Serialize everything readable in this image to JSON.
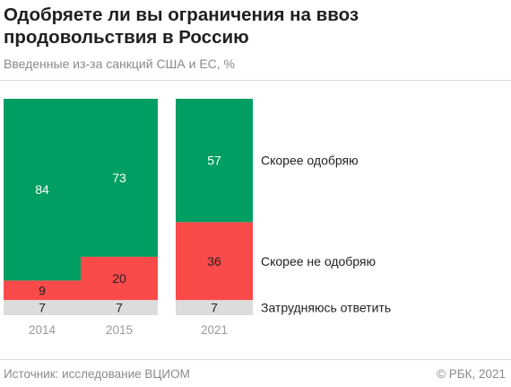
{
  "title": "Одобряете ли вы ограничения на ввоз продовольствия в Россию",
  "subtitle": "Введенные из-за санкций США и ЕС, %",
  "source": "Источник: исследование ВЦИОМ",
  "copyright": "© РБК, 2021",
  "colors": {
    "approve": "#009e63",
    "disapprove": "#fb4a4a",
    "unsure": "#dcdcdc"
  },
  "chart_data": {
    "type": "bar",
    "stacked": true,
    "categories": [
      "2014",
      "2015",
      "2021"
    ],
    "series": [
      {
        "name": "Затрудняюсь ответить",
        "values": [
          7,
          7,
          7
        ]
      },
      {
        "name": "Скорее не одобряю",
        "values": [
          9,
          20,
          36
        ]
      },
      {
        "name": "Скорее одобряю",
        "values": [
          84,
          73,
          57
        ]
      }
    ],
    "ylim": [
      0,
      100
    ],
    "grid": false,
    "legend": "right"
  }
}
